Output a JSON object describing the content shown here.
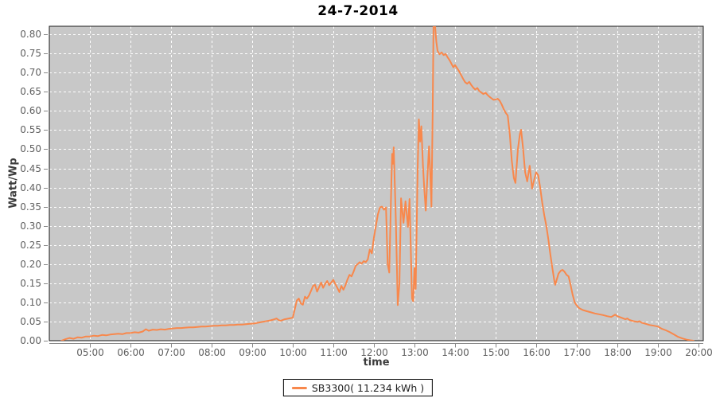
{
  "title": "24-7-2014",
  "axes": {
    "x_label": "time",
    "y_label": "Watt/Wp",
    "x_ticks": [
      {
        "t": 5,
        "label": "05:00"
      },
      {
        "t": 6,
        "label": "06:00"
      },
      {
        "t": 7,
        "label": "07:00"
      },
      {
        "t": 8,
        "label": "08:00"
      },
      {
        "t": 9,
        "label": "09:00"
      },
      {
        "t": 10,
        "label": "10:00"
      },
      {
        "t": 11,
        "label": "11:00"
      },
      {
        "t": 12,
        "label": "12:00"
      },
      {
        "t": 13,
        "label": "13:00"
      },
      {
        "t": 14,
        "label": "14:00"
      },
      {
        "t": 15,
        "label": "15:00"
      },
      {
        "t": 16,
        "label": "16:00"
      },
      {
        "t": 17,
        "label": "17:00"
      },
      {
        "t": 18,
        "label": "18:00"
      },
      {
        "t": 19,
        "label": "19:00"
      },
      {
        "t": 20,
        "label": "20:00"
      }
    ],
    "y_ticks": [
      {
        "v": 0.0,
        "label": "0.00"
      },
      {
        "v": 0.05,
        "label": "0.05"
      },
      {
        "v": 0.1,
        "label": "0.10"
      },
      {
        "v": 0.15,
        "label": "0.15"
      },
      {
        "v": 0.2,
        "label": "0.20"
      },
      {
        "v": 0.25,
        "label": "0.25"
      },
      {
        "v": 0.3,
        "label": "0.30"
      },
      {
        "v": 0.35,
        "label": "0.35"
      },
      {
        "v": 0.4,
        "label": "0.40"
      },
      {
        "v": 0.45,
        "label": "0.45"
      },
      {
        "v": 0.5,
        "label": "0.50"
      },
      {
        "v": 0.55,
        "label": "0.55"
      },
      {
        "v": 0.6,
        "label": "0.60"
      },
      {
        "v": 0.65,
        "label": "0.65"
      },
      {
        "v": 0.7,
        "label": "0.70"
      },
      {
        "v": 0.75,
        "label": "0.75"
      },
      {
        "v": 0.8,
        "label": "0.80"
      }
    ]
  },
  "legend": {
    "series_label": "SB3300( 11.234 kWh )",
    "swatch_color": "#f8884c"
  },
  "colors": {
    "line": "#f8884c",
    "plot_bg": "#c8c8c8",
    "grid": "#ffffff",
    "plot_border": "#1a1a1a",
    "axis_line": "#888888",
    "tick_text": "#606060",
    "title_text": "#000000"
  },
  "chart_data": {
    "type": "line",
    "title": "24-7-2014",
    "xlabel": "time",
    "ylabel": "Watt/Wp",
    "x_unit": "hour_of_day",
    "xlim": [
      4.0,
      20.12
    ],
    "ylim": [
      0,
      0.8212
    ],
    "grid": true,
    "legend_position": "bottom",
    "series": [
      {
        "name": "SB3300( 11.234 kWh )",
        "color": "#f8884c",
        "points": [
          [
            4.3,
            0
          ],
          [
            4.4,
            0.004
          ],
          [
            4.5,
            0.007
          ],
          [
            4.6,
            0.005
          ],
          [
            4.7,
            0.009
          ],
          [
            4.8,
            0.008
          ],
          [
            4.9,
            0.011
          ],
          [
            5.0,
            0.011
          ],
          [
            5.1,
            0.013
          ],
          [
            5.2,
            0.012
          ],
          [
            5.3,
            0.015
          ],
          [
            5.4,
            0.014
          ],
          [
            5.5,
            0.016
          ],
          [
            5.6,
            0.017
          ],
          [
            5.7,
            0.018
          ],
          [
            5.8,
            0.017
          ],
          [
            5.9,
            0.02
          ],
          [
            6.0,
            0.02
          ],
          [
            6.1,
            0.022
          ],
          [
            6.2,
            0.021
          ],
          [
            6.3,
            0.024
          ],
          [
            6.38,
            0.03
          ],
          [
            6.45,
            0.026
          ],
          [
            6.55,
            0.029
          ],
          [
            6.65,
            0.028
          ],
          [
            6.75,
            0.03
          ],
          [
            6.85,
            0.029
          ],
          [
            6.95,
            0.031
          ],
          [
            7.05,
            0.032
          ],
          [
            7.15,
            0.033
          ],
          [
            7.25,
            0.033
          ],
          [
            7.35,
            0.034
          ],
          [
            7.45,
            0.035
          ],
          [
            7.55,
            0.035
          ],
          [
            7.65,
            0.036
          ],
          [
            7.75,
            0.037
          ],
          [
            7.85,
            0.037
          ],
          [
            7.95,
            0.038
          ],
          [
            8.05,
            0.039
          ],
          [
            8.15,
            0.039
          ],
          [
            8.25,
            0.04
          ],
          [
            8.35,
            0.04
          ],
          [
            8.45,
            0.041
          ],
          [
            8.55,
            0.041
          ],
          [
            8.65,
            0.042
          ],
          [
            8.75,
            0.042
          ],
          [
            8.85,
            0.043
          ],
          [
            8.95,
            0.044
          ],
          [
            9.05,
            0.045
          ],
          [
            9.15,
            0.047
          ],
          [
            9.25,
            0.049
          ],
          [
            9.35,
            0.051
          ],
          [
            9.45,
            0.053
          ],
          [
            9.55,
            0.056
          ],
          [
            9.6,
            0.058
          ],
          [
            9.65,
            0.054
          ],
          [
            9.7,
            0.052
          ],
          [
            9.8,
            0.056
          ],
          [
            9.9,
            0.058
          ],
          [
            10.0,
            0.06
          ],
          [
            10.05,
            0.082
          ],
          [
            10.1,
            0.105
          ],
          [
            10.15,
            0.11
          ],
          [
            10.2,
            0.097
          ],
          [
            10.25,
            0.094
          ],
          [
            10.3,
            0.115
          ],
          [
            10.35,
            0.11
          ],
          [
            10.4,
            0.118
          ],
          [
            10.45,
            0.13
          ],
          [
            10.5,
            0.143
          ],
          [
            10.55,
            0.146
          ],
          [
            10.6,
            0.128
          ],
          [
            10.65,
            0.14
          ],
          [
            10.7,
            0.152
          ],
          [
            10.75,
            0.138
          ],
          [
            10.8,
            0.148
          ],
          [
            10.85,
            0.156
          ],
          [
            10.9,
            0.145
          ],
          [
            10.95,
            0.152
          ],
          [
            11.0,
            0.159
          ],
          [
            11.05,
            0.148
          ],
          [
            11.1,
            0.138
          ],
          [
            11.15,
            0.127
          ],
          [
            11.2,
            0.143
          ],
          [
            11.25,
            0.133
          ],
          [
            11.3,
            0.145
          ],
          [
            11.35,
            0.16
          ],
          [
            11.4,
            0.172
          ],
          [
            11.45,
            0.168
          ],
          [
            11.5,
            0.18
          ],
          [
            11.55,
            0.195
          ],
          [
            11.6,
            0.2
          ],
          [
            11.65,
            0.205
          ],
          [
            11.7,
            0.201
          ],
          [
            11.75,
            0.208
          ],
          [
            11.8,
            0.205
          ],
          [
            11.85,
            0.212
          ],
          [
            11.9,
            0.238
          ],
          [
            11.95,
            0.228
          ],
          [
            12.0,
            0.268
          ],
          [
            12.05,
            0.3
          ],
          [
            12.1,
            0.33
          ],
          [
            12.15,
            0.348
          ],
          [
            12.2,
            0.35
          ],
          [
            12.25,
            0.342
          ],
          [
            12.3,
            0.348
          ],
          [
            12.34,
            0.2
          ],
          [
            12.38,
            0.178
          ],
          [
            12.43,
            0.41
          ],
          [
            12.45,
            0.488
          ],
          [
            12.47,
            0.462
          ],
          [
            12.49,
            0.505
          ],
          [
            12.54,
            0.32
          ],
          [
            12.59,
            0.093
          ],
          [
            12.63,
            0.15
          ],
          [
            12.67,
            0.372
          ],
          [
            12.73,
            0.308
          ],
          [
            12.78,
            0.364
          ],
          [
            12.84,
            0.297
          ],
          [
            12.88,
            0.37
          ],
          [
            12.94,
            0.11
          ],
          [
            12.97,
            0.103
          ],
          [
            13.0,
            0.19
          ],
          [
            13.03,
            0.135
          ],
          [
            13.08,
            0.45
          ],
          [
            13.11,
            0.578
          ],
          [
            13.14,
            0.52
          ],
          [
            13.17,
            0.56
          ],
          [
            13.21,
            0.46
          ],
          [
            13.24,
            0.4
          ],
          [
            13.28,
            0.34
          ],
          [
            13.32,
            0.43
          ],
          [
            13.36,
            0.508
          ],
          [
            13.39,
            0.44
          ],
          [
            13.42,
            0.35
          ],
          [
            13.45,
            0.6
          ],
          [
            13.47,
            0.821
          ],
          [
            13.51,
            0.821
          ],
          [
            13.54,
            0.78
          ],
          [
            13.57,
            0.757
          ],
          [
            13.62,
            0.748
          ],
          [
            13.67,
            0.753
          ],
          [
            13.72,
            0.746
          ],
          [
            13.77,
            0.749
          ],
          [
            13.82,
            0.74
          ],
          [
            13.87,
            0.732
          ],
          [
            13.92,
            0.722
          ],
          [
            13.96,
            0.714
          ],
          [
            14.0,
            0.72
          ],
          [
            14.05,
            0.712
          ],
          [
            14.1,
            0.704
          ],
          [
            14.15,
            0.694
          ],
          [
            14.2,
            0.684
          ],
          [
            14.25,
            0.675
          ],
          [
            14.3,
            0.671
          ],
          [
            14.35,
            0.676
          ],
          [
            14.4,
            0.668
          ],
          [
            14.45,
            0.661
          ],
          [
            14.5,
            0.656
          ],
          [
            14.55,
            0.66
          ],
          [
            14.6,
            0.652
          ],
          [
            14.65,
            0.648
          ],
          [
            14.7,
            0.644
          ],
          [
            14.75,
            0.648
          ],
          [
            14.8,
            0.642
          ],
          [
            14.85,
            0.637
          ],
          [
            14.9,
            0.633
          ],
          [
            14.95,
            0.629
          ],
          [
            15.0,
            0.63
          ],
          [
            15.05,
            0.632
          ],
          [
            15.1,
            0.627
          ],
          [
            15.15,
            0.617
          ],
          [
            15.2,
            0.605
          ],
          [
            15.25,
            0.595
          ],
          [
            15.3,
            0.588
          ],
          [
            15.35,
            0.54
          ],
          [
            15.4,
            0.47
          ],
          [
            15.45,
            0.425
          ],
          [
            15.49,
            0.412
          ],
          [
            15.55,
            0.5
          ],
          [
            15.6,
            0.54
          ],
          [
            15.63,
            0.551
          ],
          [
            15.68,
            0.5
          ],
          [
            15.73,
            0.44
          ],
          [
            15.78,
            0.416
          ],
          [
            15.84,
            0.457
          ],
          [
            15.9,
            0.397
          ],
          [
            15.95,
            0.42
          ],
          [
            16.0,
            0.44
          ],
          [
            16.05,
            0.432
          ],
          [
            16.1,
            0.4
          ],
          [
            16.15,
            0.36
          ],
          [
            16.2,
            0.328
          ],
          [
            16.25,
            0.3
          ],
          [
            16.3,
            0.266
          ],
          [
            16.35,
            0.225
          ],
          [
            16.4,
            0.19
          ],
          [
            16.45,
            0.155
          ],
          [
            16.47,
            0.146
          ],
          [
            16.55,
            0.175
          ],
          [
            16.61,
            0.183
          ],
          [
            16.65,
            0.185
          ],
          [
            16.7,
            0.18
          ],
          [
            16.75,
            0.172
          ],
          [
            16.8,
            0.168
          ],
          [
            16.85,
            0.145
          ],
          [
            16.9,
            0.12
          ],
          [
            16.95,
            0.1
          ],
          [
            17.0,
            0.092
          ],
          [
            17.06,
            0.085
          ],
          [
            17.15,
            0.08
          ],
          [
            17.25,
            0.077
          ],
          [
            17.35,
            0.074
          ],
          [
            17.45,
            0.071
          ],
          [
            17.55,
            0.069
          ],
          [
            17.65,
            0.067
          ],
          [
            17.75,
            0.064
          ],
          [
            17.85,
            0.062
          ],
          [
            17.9,
            0.065
          ],
          [
            17.95,
            0.068
          ],
          [
            18.0,
            0.064
          ],
          [
            18.1,
            0.06
          ],
          [
            18.2,
            0.056
          ],
          [
            18.25,
            0.058
          ],
          [
            18.3,
            0.054
          ],
          [
            18.4,
            0.051
          ],
          [
            18.5,
            0.049
          ],
          [
            18.55,
            0.051
          ],
          [
            18.6,
            0.047
          ],
          [
            18.7,
            0.044
          ],
          [
            18.8,
            0.041
          ],
          [
            18.9,
            0.039
          ],
          [
            19.0,
            0.037
          ],
          [
            19.1,
            0.031
          ],
          [
            19.2,
            0.027
          ],
          [
            19.3,
            0.022
          ],
          [
            19.4,
            0.016
          ],
          [
            19.5,
            0.01
          ],
          [
            19.6,
            0.006
          ],
          [
            19.7,
            0.003
          ],
          [
            19.8,
            0.001
          ],
          [
            19.88,
            0
          ]
        ]
      }
    ]
  }
}
